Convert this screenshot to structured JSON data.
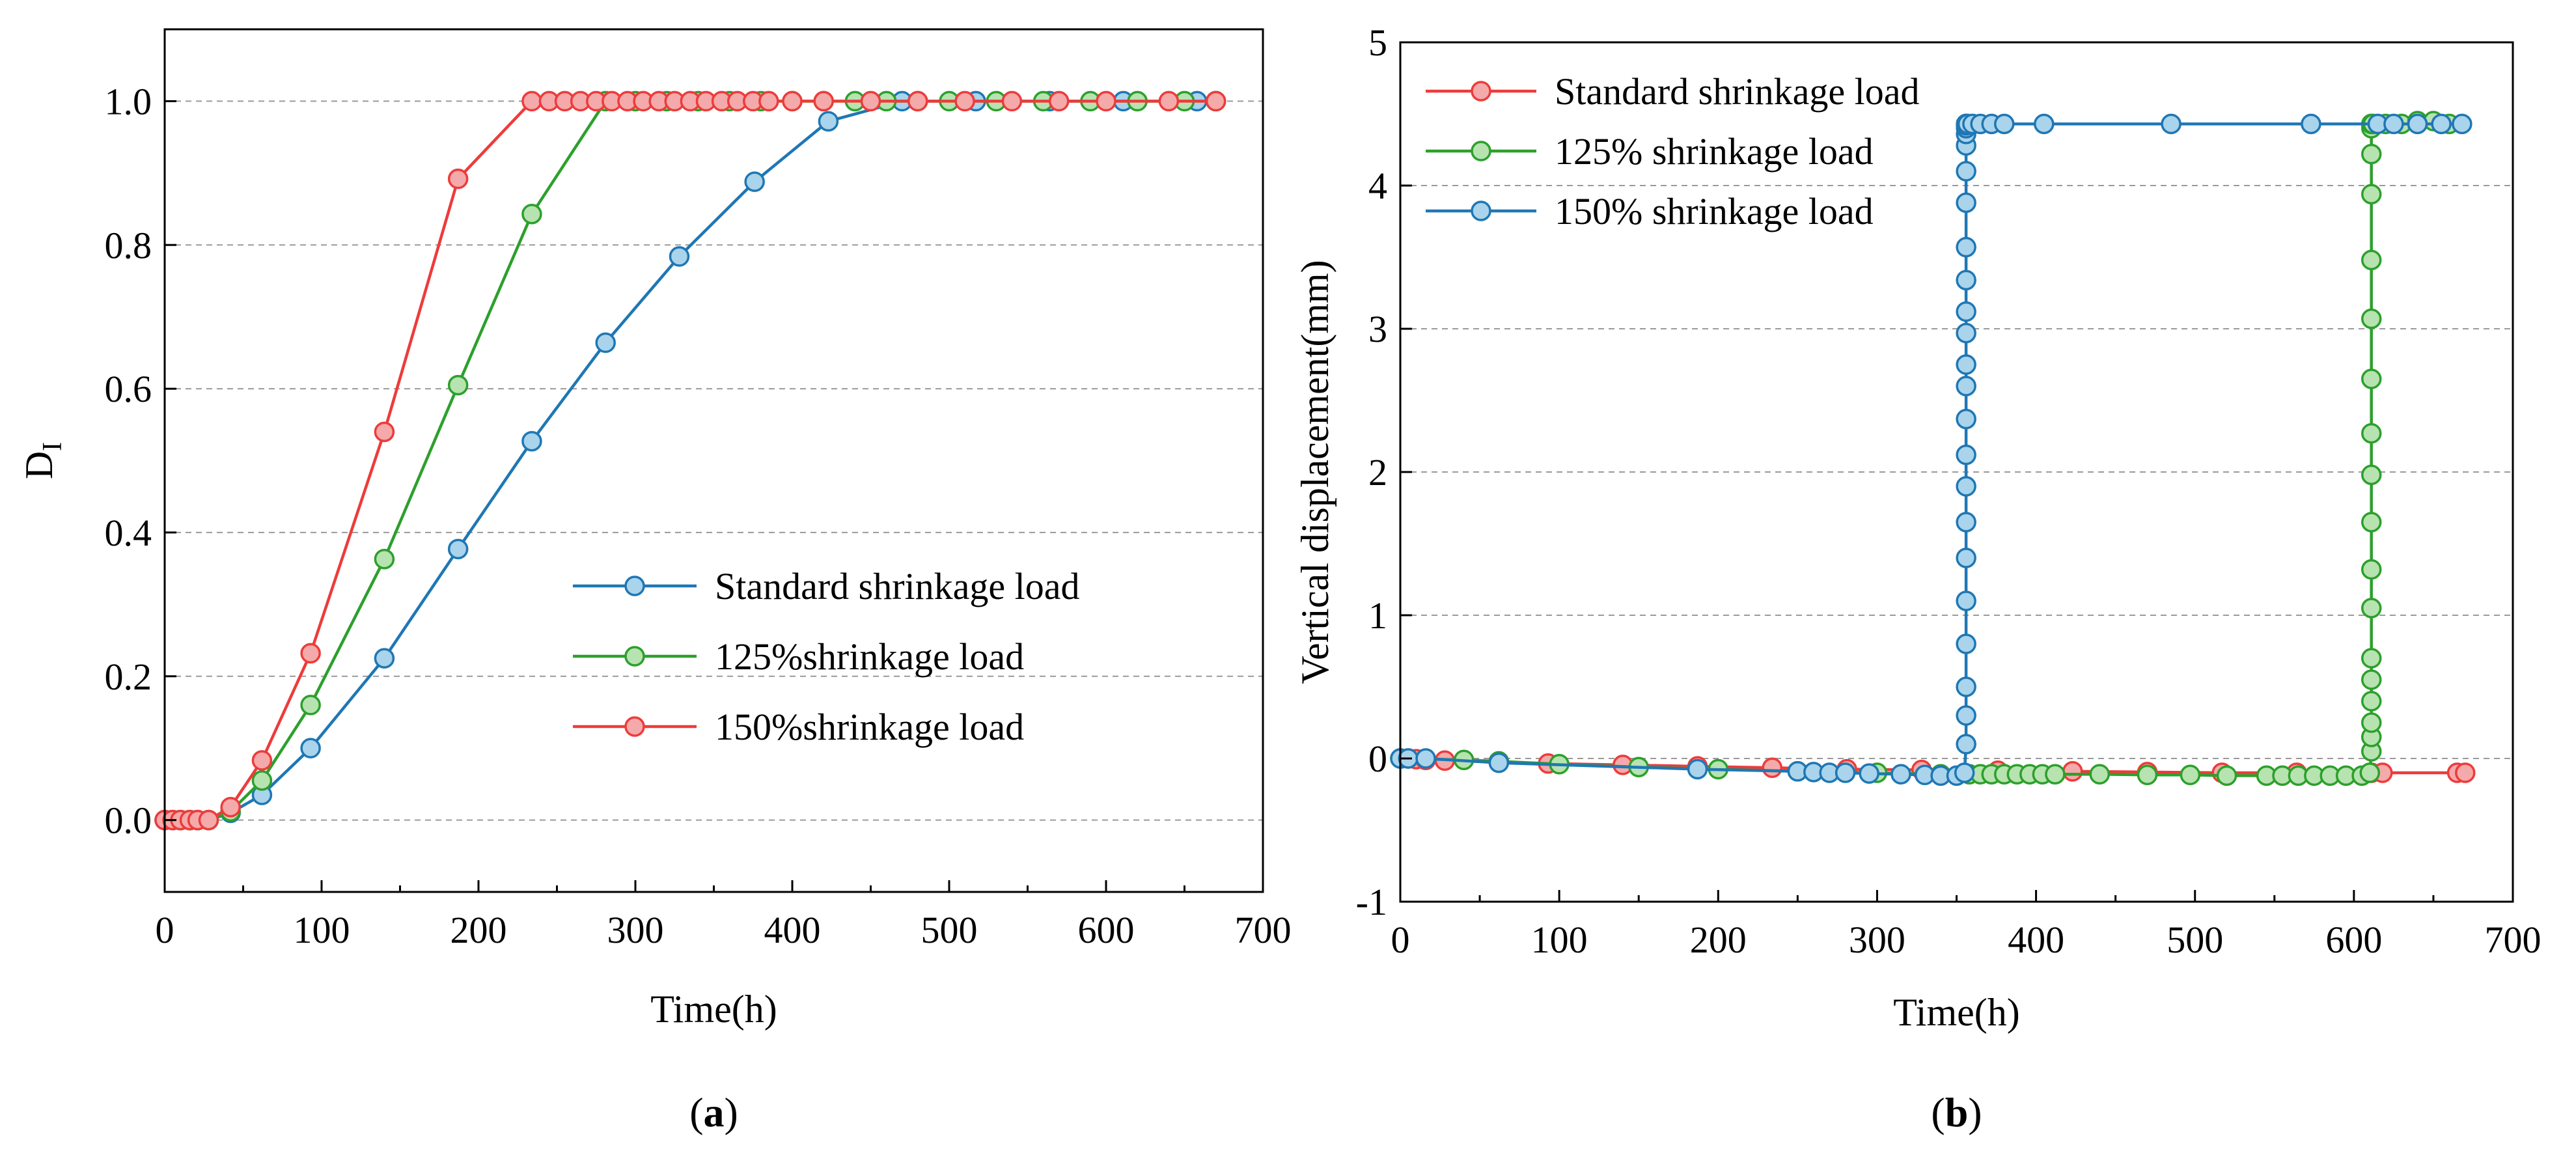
{
  "chart_data": [
    {
      "id": "a",
      "type": "line",
      "panel_label": "(a)",
      "xlabel": "Time(h)",
      "ylabel": "D",
      "ylabel_sub": "I",
      "xlim": [
        0,
        700
      ],
      "ylim": [
        -0.1,
        1.1
      ],
      "xticks": [
        0,
        100,
        200,
        300,
        400,
        500,
        600,
        700
      ],
      "yticks": [
        0.0,
        0.2,
        0.4,
        0.6,
        0.8,
        1.0
      ],
      "ytick_labels": [
        "0.0",
        "0.2",
        "0.4",
        "0.6",
        "0.8",
        "1.0"
      ],
      "grid": "horizontal dashed",
      "legend_position": "center-right",
      "series": [
        {
          "name": "Standard shrinkage load",
          "color": "#1f77b4",
          "marker_fill": "#a9d4ec",
          "x": [
            0,
            5,
            10,
            16,
            21,
            28,
            42,
            62,
            93,
            140,
            187,
            234,
            281,
            328,
            376,
            423,
            470,
            517,
            564,
            611,
            658,
            670
          ],
          "y": [
            0,
            0,
            0,
            0,
            0,
            0,
            0.01,
            0.035,
            0.1,
            0.225,
            0.377,
            0.527,
            0.664,
            0.784,
            0.888,
            0.972,
            1.0,
            1.0,
            1.0,
            1.0,
            1.0,
            1.0
          ]
        },
        {
          "name": "125%shrinkage load",
          "color": "#2ca02c",
          "marker_fill": "#b7e3b0",
          "x": [
            0,
            5,
            10,
            16,
            21,
            28,
            42,
            62,
            93,
            140,
            187,
            234,
            281,
            300,
            320,
            340,
            360,
            380,
            400,
            420,
            440,
            460,
            480,
            500,
            530,
            560,
            590,
            620,
            650,
            670
          ],
          "y": [
            0,
            0,
            0,
            0,
            0,
            0,
            0.012,
            0.055,
            0.16,
            0.363,
            0.605,
            0.843,
            1.0,
            1.0,
            1.0,
            1.0,
            1.0,
            1.0,
            1.0,
            1.0,
            1.0,
            1.0,
            1.0,
            1.0,
            1.0,
            1.0,
            1.0,
            1.0,
            1.0,
            1.0
          ]
        },
        {
          "name": "150%shrinkage load",
          "color": "#ee3b3b",
          "marker_fill": "#f4aaaa",
          "x": [
            0,
            5,
            10,
            16,
            21,
            28,
            42,
            62,
            93,
            140,
            187,
            234,
            245,
            255,
            265,
            275,
            285,
            295,
            305,
            315,
            325,
            335,
            345,
            355,
            365,
            375,
            385,
            400,
            420,
            450,
            480,
            510,
            540,
            570,
            600,
            640,
            670
          ],
          "y": [
            0,
            0,
            0,
            0,
            0,
            0,
            0.018,
            0.083,
            0.232,
            0.54,
            0.892,
            1.0,
            1.0,
            1.0,
            1.0,
            1.0,
            1.0,
            1.0,
            1.0,
            1.0,
            1.0,
            1.0,
            1.0,
            1.0,
            1.0,
            1.0,
            1.0,
            1.0,
            1.0,
            1.0,
            1.0,
            1.0,
            1.0,
            1.0,
            1.0,
            1.0,
            1.0
          ]
        }
      ]
    },
    {
      "id": "b",
      "type": "line",
      "panel_label": "(b)",
      "xlabel": "Time(h)",
      "ylabel": "Vertical displacement(mm)",
      "xlim": [
        0,
        700
      ],
      "ylim": [
        -1,
        5
      ],
      "xticks": [
        0,
        100,
        200,
        300,
        400,
        500,
        600,
        700
      ],
      "yticks": [
        -1,
        0,
        1,
        2,
        3,
        4,
        5
      ],
      "ytick_labels": [
        "-1",
        "0",
        "1",
        "2",
        "3",
        "4",
        "5"
      ],
      "grid": "horizontal dashed",
      "legend_position": "top-left",
      "series": [
        {
          "name": "Standard shrinkage load",
          "color": "#ee3b3b",
          "marker_fill": "#f4aaaa",
          "x": [
            0,
            5,
            10,
            16,
            28,
            62,
            93,
            140,
            187,
            234,
            281,
            328,
            376,
            423,
            470,
            517,
            564,
            611,
            618,
            665,
            670
          ],
          "y": [
            0,
            0,
            -0.005,
            -0.01,
            -0.015,
            -0.025,
            -0.035,
            -0.045,
            -0.055,
            -0.065,
            -0.075,
            -0.08,
            -0.085,
            -0.09,
            -0.095,
            -0.1,
            -0.1,
            -0.1,
            -0.1,
            -0.1,
            -0.1
          ]
        },
        {
          "name": "125% shrinkage load",
          "color": "#2ca02c",
          "marker_fill": "#b7e3b0",
          "x": [
            0,
            40,
            62,
            100,
            150,
            200,
            250,
            300,
            340,
            358,
            365,
            372,
            380,
            388,
            396,
            404,
            412,
            440,
            470,
            497,
            520,
            545,
            555,
            565,
            575,
            585,
            595,
            605,
            610,
            611,
            611,
            611,
            611,
            611,
            611,
            611,
            611,
            611,
            611,
            611,
            611,
            611,
            611,
            611,
            611,
            611,
            611,
            611,
            612,
            620,
            630,
            640,
            650,
            660
          ],
          "y": [
            0,
            -0.01,
            -0.02,
            -0.04,
            -0.06,
            -0.075,
            -0.09,
            -0.1,
            -0.11,
            -0.11,
            -0.11,
            -0.11,
            -0.11,
            -0.11,
            -0.11,
            -0.11,
            -0.11,
            -0.11,
            -0.115,
            -0.115,
            -0.12,
            -0.12,
            -0.12,
            -0.12,
            -0.12,
            -0.12,
            -0.12,
            -0.12,
            -0.1,
            0.05,
            0.15,
            0.25,
            0.4,
            0.55,
            0.7,
            1.05,
            1.32,
            1.65,
            1.98,
            2.27,
            2.65,
            3.07,
            3.48,
            3.94,
            4.22,
            4.4,
            4.43,
            4.43,
            4.43,
            4.43,
            4.43,
            4.45,
            4.45,
            4.43
          ]
        },
        {
          "name": "150% shrinkage load",
          "color": "#1f77b4",
          "marker_fill": "#a9d4ec",
          "x": [
            0,
            5,
            16,
            62,
            187,
            250,
            260,
            270,
            280,
            295,
            315,
            330,
            340,
            350,
            355,
            356,
            356,
            356,
            356,
            356,
            356,
            356,
            356,
            356,
            356,
            356,
            356,
            356,
            356,
            356,
            356,
            356,
            356,
            356,
            356,
            356,
            356,
            356,
            356,
            357,
            360,
            365,
            372,
            380,
            405,
            485,
            573,
            615,
            625,
            640,
            655,
            668
          ],
          "y": [
            0,
            0,
            0,
            -0.03,
            -0.075,
            -0.09,
            -0.095,
            -0.1,
            -0.1,
            -0.105,
            -0.11,
            -0.115,
            -0.12,
            -0.12,
            -0.1,
            0.1,
            0.3,
            0.5,
            0.8,
            1.1,
            1.4,
            1.65,
            1.9,
            2.12,
            2.37,
            2.6,
            2.75,
            2.97,
            3.12,
            3.34,
            3.57,
            3.88,
            4.1,
            4.28,
            4.36,
            4.4,
            4.42,
            4.43,
            4.43,
            4.43,
            4.43,
            4.43,
            4.43,
            4.43,
            4.43,
            4.43,
            4.43,
            4.43,
            4.43,
            4.43,
            4.43,
            4.43
          ]
        }
      ]
    }
  ]
}
